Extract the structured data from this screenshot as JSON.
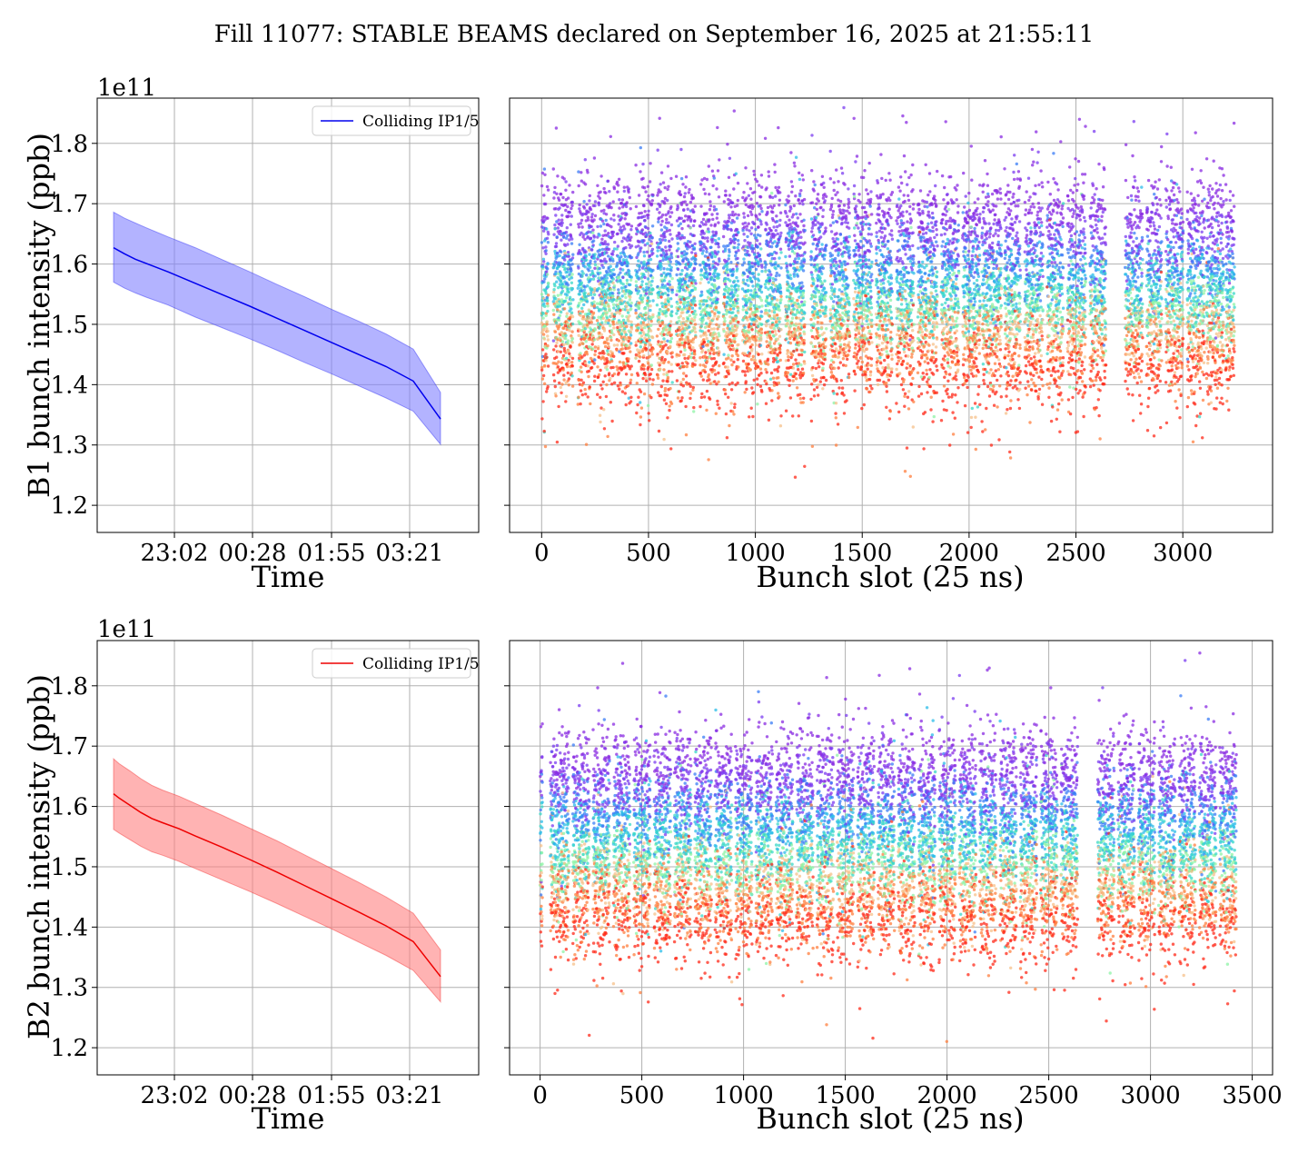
{
  "figure": {
    "title": "Fill 11077: STABLE BEAMS declared on September 16, 2025 at 21:55:11"
  },
  "chart_data": [
    {
      "id": "b1-time",
      "type": "line",
      "xlabel": "Time",
      "ylabel": "B1 bunch intensity (ppb)",
      "y_offset_label": "1e11",
      "x_ticks": [
        "23:02",
        "00:28",
        "01:55",
        "03:21"
      ],
      "x_tick_hours": [
        1.117,
        2.55,
        4.0,
        5.433
      ],
      "xlim_hours": [
        -0.3,
        6.7
      ],
      "ylim": [
        1.155,
        1.875
      ],
      "y_ticks": [
        1.2,
        1.3,
        1.4,
        1.5,
        1.6,
        1.7,
        1.8
      ],
      "grid": true,
      "legend": {
        "label": "Colliding IP1/5",
        "placement": "upper right"
      },
      "color": "#0000ee",
      "band_color": "#8080ff",
      "series": [
        {
          "name": "Colliding IP1/5",
          "x_hours": [
            0.0,
            0.2,
            0.4,
            0.6,
            1.0,
            1.5,
            2.0,
            2.5,
            3.0,
            3.5,
            4.0,
            4.5,
            5.0,
            5.5,
            6.0
          ],
          "mean": [
            1.627,
            1.617,
            1.608,
            1.601,
            1.587,
            1.568,
            1.549,
            1.53,
            1.51,
            1.49,
            1.47,
            1.45,
            1.43,
            1.406,
            1.343
          ],
          "upper": [
            1.686,
            1.676,
            1.668,
            1.66,
            1.645,
            1.627,
            1.607,
            1.587,
            1.566,
            1.546,
            1.525,
            1.505,
            1.484,
            1.459,
            1.387
          ],
          "lower": [
            1.57,
            1.56,
            1.552,
            1.545,
            1.532,
            1.512,
            1.494,
            1.476,
            1.457,
            1.437,
            1.418,
            1.398,
            1.378,
            1.356,
            1.301
          ]
        }
      ]
    },
    {
      "id": "b1-slot",
      "type": "scatter",
      "xlabel": "Bunch slot (25 ns)",
      "ylabel": "",
      "xlim": [
        -150,
        3420
      ],
      "x_ticks": [
        0,
        500,
        1000,
        1500,
        2000,
        2500,
        3000
      ],
      "ylim": [
        1.155,
        1.875
      ],
      "y_ticks": [
        1.2,
        1.3,
        1.4,
        1.5,
        1.6,
        1.7,
        1.8
      ],
      "grid": true,
      "colormap": "rainbow",
      "slot_range": [
        0,
        3240
      ],
      "trains": [
        [
          0,
          30
        ],
        [
          55,
          145
        ],
        [
          170,
          250
        ],
        [
          260,
          340
        ],
        [
          350,
          420
        ],
        [
          440,
          520
        ],
        [
          540,
          610
        ],
        [
          630,
          720
        ],
        [
          740,
          830
        ],
        [
          850,
          920
        ],
        [
          940,
          1030
        ],
        [
          1045,
          1120
        ],
        [
          1140,
          1230
        ],
        [
          1260,
          1330
        ],
        [
          1350,
          1440
        ],
        [
          1460,
          1545
        ],
        [
          1565,
          1640
        ],
        [
          1660,
          1740
        ],
        [
          1760,
          1850
        ],
        [
          1870,
          1950
        ],
        [
          1970,
          2050
        ],
        [
          2060,
          2150
        ],
        [
          2165,
          2240
        ],
        [
          2260,
          2345
        ],
        [
          2365,
          2440
        ],
        [
          2460,
          2545
        ],
        [
          2565,
          2640
        ],
        [
          2730,
          2810
        ],
        [
          2830,
          2900
        ],
        [
          2920,
          3000
        ],
        [
          3020,
          3100
        ],
        [
          3110,
          3190
        ],
        [
          3200,
          3240
        ]
      ],
      "levels": [
        {
          "mean": 1.69,
          "spread": 0.035,
          "color": "#8a2be2"
        },
        {
          "mean": 1.64,
          "spread": 0.035,
          "color": "#7b3cf0"
        },
        {
          "mean": 1.6,
          "spread": 0.035,
          "color": "#3a7cf6"
        },
        {
          "mean": 1.57,
          "spread": 0.035,
          "color": "#2bbce8"
        },
        {
          "mean": 1.54,
          "spread": 0.035,
          "color": "#3ad8c8"
        },
        {
          "mean": 1.52,
          "spread": 0.035,
          "color": "#8ef3a6"
        },
        {
          "mean": 1.49,
          "spread": 0.035,
          "color": "#f5c08a"
        },
        {
          "mean": 1.46,
          "spread": 0.04,
          "color": "#ff7f3f"
        },
        {
          "mean": 1.43,
          "spread": 0.04,
          "color": "#ff2a1a"
        }
      ]
    },
    {
      "id": "b2-time",
      "type": "line",
      "xlabel": "Time",
      "ylabel": "B2 bunch intensity (ppb)",
      "y_offset_label": "1e11",
      "x_ticks": [
        "23:02",
        "00:28",
        "01:55",
        "03:21"
      ],
      "x_tick_hours": [
        1.117,
        2.55,
        4.0,
        5.433
      ],
      "xlim_hours": [
        -0.3,
        6.7
      ],
      "ylim": [
        1.155,
        1.875
      ],
      "y_ticks": [
        1.2,
        1.3,
        1.4,
        1.5,
        1.6,
        1.7,
        1.8
      ],
      "grid": true,
      "legend": {
        "label": "Colliding IP1/5",
        "placement": "upper right"
      },
      "color": "#ee0000",
      "band_color": "#ff8080",
      "series": [
        {
          "name": "Colliding IP1/5",
          "x_hours": [
            0.0,
            0.1,
            0.3,
            0.5,
            0.7,
            0.9,
            1.2,
            1.5,
            2.0,
            2.5,
            3.0,
            3.5,
            4.0,
            4.5,
            5.0,
            5.5,
            6.0
          ],
          "mean": [
            1.621,
            1.614,
            1.602,
            1.59,
            1.58,
            1.573,
            1.563,
            1.551,
            1.532,
            1.512,
            1.491,
            1.469,
            1.447,
            1.425,
            1.402,
            1.376,
            1.318
          ],
          "upper": [
            1.679,
            1.671,
            1.659,
            1.646,
            1.635,
            1.627,
            1.617,
            1.605,
            1.585,
            1.564,
            1.543,
            1.52,
            1.497,
            1.474,
            1.45,
            1.423,
            1.362
          ],
          "lower": [
            1.562,
            1.556,
            1.545,
            1.534,
            1.525,
            1.519,
            1.509,
            1.497,
            1.478,
            1.459,
            1.439,
            1.418,
            1.397,
            1.375,
            1.353,
            1.328,
            1.276
          ]
        }
      ]
    },
    {
      "id": "b2-slot",
      "type": "scatter",
      "xlabel": "Bunch slot (25 ns)",
      "ylabel": "",
      "xlim": [
        -150,
        3600
      ],
      "x_ticks": [
        0,
        500,
        1000,
        1500,
        2000,
        2500,
        3000,
        3500
      ],
      "ylim": [
        1.155,
        1.875
      ],
      "y_ticks": [
        1.2,
        1.3,
        1.4,
        1.5,
        1.6,
        1.7,
        1.8
      ],
      "grid": true,
      "colormap": "rainbow",
      "slot_range": [
        0,
        3420
      ],
      "trains": [
        [
          0,
          10
        ],
        [
          50,
          140
        ],
        [
          160,
          240
        ],
        [
          260,
          340
        ],
        [
          360,
          440
        ],
        [
          460,
          540
        ],
        [
          560,
          640
        ],
        [
          660,
          740
        ],
        [
          760,
          840
        ],
        [
          860,
          940
        ],
        [
          960,
          1040
        ],
        [
          1060,
          1140
        ],
        [
          1160,
          1240
        ],
        [
          1260,
          1340
        ],
        [
          1360,
          1440
        ],
        [
          1460,
          1540
        ],
        [
          1560,
          1640
        ],
        [
          1660,
          1740
        ],
        [
          1760,
          1840
        ],
        [
          1860,
          1940
        ],
        [
          1960,
          2040
        ],
        [
          2060,
          2140
        ],
        [
          2160,
          2240
        ],
        [
          2260,
          2340
        ],
        [
          2360,
          2440
        ],
        [
          2460,
          2540
        ],
        [
          2560,
          2640
        ],
        [
          2740,
          2820
        ],
        [
          2840,
          2920
        ],
        [
          2940,
          3020
        ],
        [
          3040,
          3120
        ],
        [
          3140,
          3220
        ],
        [
          3240,
          3320
        ],
        [
          3340,
          3420
        ]
      ],
      "levels": [
        {
          "mean": 1.67,
          "spread": 0.035,
          "color": "#8a2be2"
        },
        {
          "mean": 1.63,
          "spread": 0.035,
          "color": "#7b3cf0"
        },
        {
          "mean": 1.59,
          "spread": 0.035,
          "color": "#3a7cf6"
        },
        {
          "mean": 1.56,
          "spread": 0.035,
          "color": "#2bbce8"
        },
        {
          "mean": 1.53,
          "spread": 0.035,
          "color": "#3ad8c8"
        },
        {
          "mean": 1.5,
          "spread": 0.035,
          "color": "#8ef3a6"
        },
        {
          "mean": 1.47,
          "spread": 0.035,
          "color": "#f5c08a"
        },
        {
          "mean": 1.44,
          "spread": 0.04,
          "color": "#ff7f3f"
        },
        {
          "mean": 1.41,
          "spread": 0.04,
          "color": "#ff2a1a"
        }
      ]
    }
  ]
}
